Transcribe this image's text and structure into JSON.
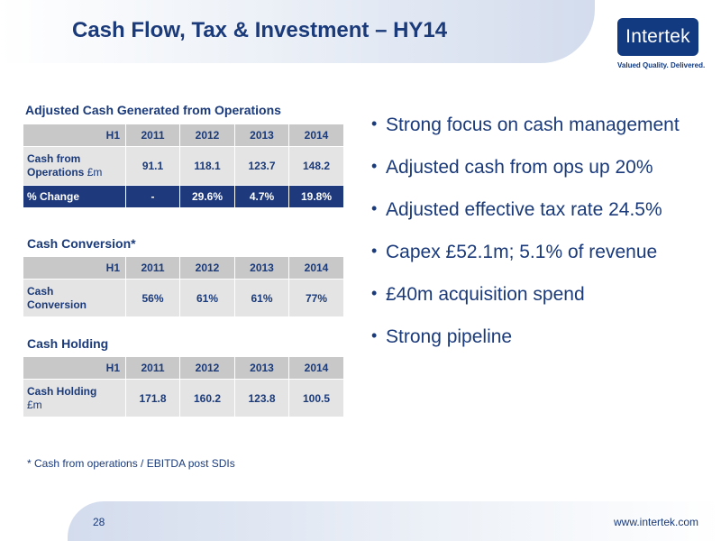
{
  "header": {
    "title": "Cash Flow, Tax & Investment – HY14"
  },
  "logo": {
    "name": "Intertek",
    "tagline": "Valued Quality. Delivered."
  },
  "table1": {
    "title": "Adjusted Cash Generated from Operations",
    "columns": [
      "H1",
      "2011",
      "2012",
      "2013",
      "2014"
    ],
    "row_label": "Cash from Operations",
    "row_unit": "£m",
    "values": [
      "91.1",
      "118.1",
      "123.7",
      "148.2"
    ],
    "change_label": "% Change",
    "change_values": [
      "-",
      "29.6%",
      "4.7%",
      "19.8%"
    ]
  },
  "table2": {
    "title": "Cash Conversion*",
    "columns": [
      "H1",
      "2011",
      "2012",
      "2013",
      "2014"
    ],
    "row_label": "Cash Conversion",
    "values": [
      "56%",
      "61%",
      "61%",
      "77%"
    ]
  },
  "table3": {
    "title": "Cash Holding",
    "columns": [
      "H1",
      "2011",
      "2012",
      "2013",
      "2014"
    ],
    "row_label": "Cash Holding",
    "row_unit": "£m",
    "values": [
      "171.8",
      "160.2",
      "123.8",
      "100.5"
    ]
  },
  "bullets": [
    "Strong focus on cash management",
    "Adjusted cash from ops up 20%",
    "Adjusted effective tax rate 24.5%",
    "Capex £52.1m; 5.1% of revenue",
    "£40m acquisition spend",
    "Strong pipeline"
  ],
  "footnote": "* Cash from operations / EBITDA post SDIs",
  "footer": {
    "page_number": "28",
    "website": "www.intertek.com"
  }
}
